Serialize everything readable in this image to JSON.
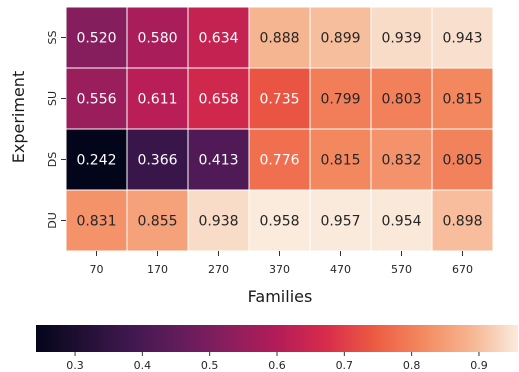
{
  "chart_data": {
    "type": "heatmap",
    "xlabel": "Families",
    "ylabel": "Experiment",
    "x_categories": [
      "70",
      "170",
      "270",
      "370",
      "470",
      "570",
      "670"
    ],
    "y_categories": [
      "SS",
      "SU",
      "DS",
      "DU"
    ],
    "values": [
      [
        0.52,
        0.58,
        0.634,
        0.888,
        0.899,
        0.939,
        0.943
      ],
      [
        0.556,
        0.611,
        0.658,
        0.735,
        0.799,
        0.803,
        0.815
      ],
      [
        0.242,
        0.366,
        0.413,
        0.776,
        0.815,
        0.832,
        0.805
      ],
      [
        0.831,
        0.855,
        0.938,
        0.958,
        0.957,
        0.954,
        0.898
      ]
    ],
    "value_labels": [
      [
        "0.520",
        "0.580",
        "0.634",
        "0.888",
        "0.899",
        "0.939",
        "0.943"
      ],
      [
        "0.556",
        "0.611",
        "0.658",
        "0.735",
        "0.799",
        "0.803",
        "0.815"
      ],
      [
        "0.242",
        "0.366",
        "0.413",
        "0.776",
        "0.815",
        "0.832",
        "0.805"
      ],
      [
        "0.831",
        "0.855",
        "0.938",
        "0.958",
        "0.957",
        "0.954",
        "0.898"
      ]
    ],
    "colormap": "rocket",
    "color_range": [
      0.242,
      0.958
    ],
    "colorbar": {
      "orientation": "horizontal",
      "placement": "bottom",
      "ticks": [
        0.3,
        0.4,
        0.5,
        0.6,
        0.7,
        0.8,
        0.9
      ],
      "tick_labels": [
        "0.3",
        "0.4",
        "0.5",
        "0.6",
        "0.7",
        "0.8",
        "0.9"
      ]
    },
    "cell_borders": true
  }
}
